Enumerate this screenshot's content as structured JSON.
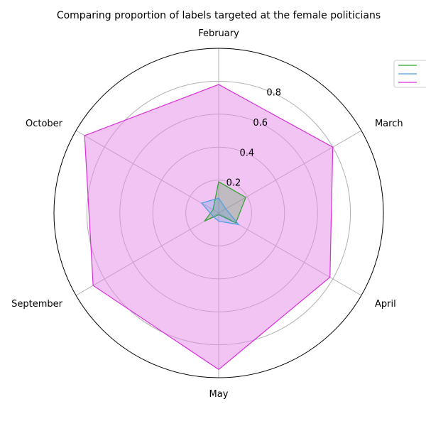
{
  "chart_data": {
    "type": "radar",
    "title": "Comparing proportion of labels targeted at the female politicians",
    "categories": [
      "February",
      "March",
      "April",
      "May",
      "September",
      "October"
    ],
    "radial_ticks": [
      "0.2",
      "0.4",
      "0.6",
      "0.8"
    ],
    "radial_tick_values": [
      0.2,
      0.4,
      0.6,
      0.8
    ],
    "rlim": [
      0,
      1.0
    ],
    "grid": true,
    "legend_position": "top-right",
    "series": [
      {
        "name": "",
        "color": "#2ca02c",
        "fill": false,
        "values": [
          0.19,
          0.19,
          0.12,
          0.01,
          0.1,
          0.04
        ]
      },
      {
        "name": "",
        "color": "#4d9de0",
        "fill": false,
        "values": [
          0.09,
          0.05,
          0.14,
          0.05,
          0.04,
          0.12
        ]
      },
      {
        "name": "",
        "color": "#d62ed6",
        "fill": true,
        "fill_color": "#e48ae8",
        "values": [
          0.78,
          0.8,
          0.78,
          0.95,
          0.88,
          0.94
        ]
      }
    ]
  }
}
